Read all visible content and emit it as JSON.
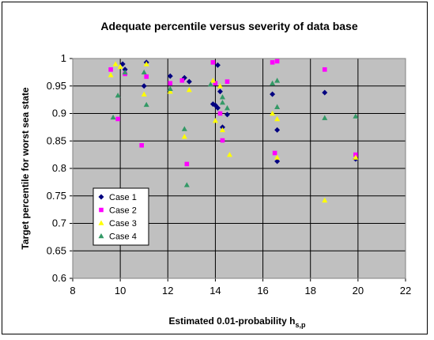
{
  "chart_data": {
    "type": "scatter",
    "title": "Adequate percentile versus severity of data base",
    "x_label": "Estimated 0.01-probability h",
    "x_label_subscript": "s,p",
    "y_label": "Target percentile for worst sea state",
    "xlim": [
      8,
      22
    ],
    "xticks": [
      8,
      10,
      12,
      14,
      16,
      18,
      20,
      22
    ],
    "ylim": [
      0.6,
      1
    ],
    "yticks": [
      0.6,
      0.65,
      0.7,
      0.75,
      0.8,
      0.85,
      0.9,
      0.95,
      1
    ],
    "grid": true,
    "legend": "left",
    "series": [
      {
        "name": "Case 1",
        "color": "#000080",
        "marker": "diamond",
        "x": [
          10.1,
          10.2,
          11.0,
          11.1,
          12.1,
          12.7,
          12.9,
          13.9,
          14.0,
          14.1,
          14.2,
          14.3,
          14.5,
          14.1,
          16.4,
          16.6,
          16.6,
          18.6,
          19.9
        ],
        "values": [
          0.99,
          0.98,
          0.95,
          0.993,
          0.968,
          0.965,
          0.958,
          0.917,
          0.915,
          0.988,
          0.94,
          0.875,
          0.898,
          0.91,
          0.935,
          0.87,
          0.813,
          0.938,
          0.817
        ]
      },
      {
        "name": "Case 2",
        "color": "#ff00ff",
        "marker": "square",
        "x": [
          9.6,
          9.9,
          10.2,
          10.9,
          11.1,
          12.1,
          12.6,
          12.8,
          13.9,
          14.0,
          14.2,
          14.3,
          14.5,
          16.4,
          16.6,
          16.5,
          18.6,
          19.9
        ],
        "values": [
          0.98,
          0.89,
          0.972,
          0.842,
          0.967,
          0.955,
          0.96,
          0.808,
          0.993,
          0.955,
          0.9,
          0.851,
          0.958,
          0.993,
          0.995,
          0.828,
          0.98,
          0.825
        ]
      },
      {
        "name": "Case 3",
        "color": "#ffff00",
        "marker": "triangle",
        "x": [
          9.6,
          9.8,
          10.0,
          11.0,
          11.1,
          12.1,
          12.7,
          12.9,
          14.0,
          13.9,
          14.2,
          14.3,
          14.6,
          16.4,
          16.6,
          16.6,
          18.6,
          19.9
        ],
        "values": [
          0.97,
          0.99,
          0.985,
          0.935,
          0.99,
          0.94,
          0.858,
          0.943,
          0.887,
          0.96,
          0.95,
          0.87,
          0.825,
          0.9,
          0.89,
          0.82,
          0.742,
          0.82
        ]
      },
      {
        "name": "Case 4",
        "color": "#339966",
        "marker": "triangle",
        "x": [
          9.7,
          9.9,
          10.2,
          11.0,
          11.1,
          12.1,
          12.7,
          12.8,
          13.8,
          14.3,
          14.3,
          14.5,
          16.4,
          16.6,
          16.6,
          18.6,
          19.9
        ],
        "values": [
          0.893,
          0.933,
          0.975,
          0.975,
          0.916,
          0.945,
          0.872,
          0.77,
          0.953,
          0.92,
          0.93,
          0.91,
          0.955,
          0.96,
          0.912,
          0.892,
          0.895
        ]
      }
    ]
  }
}
